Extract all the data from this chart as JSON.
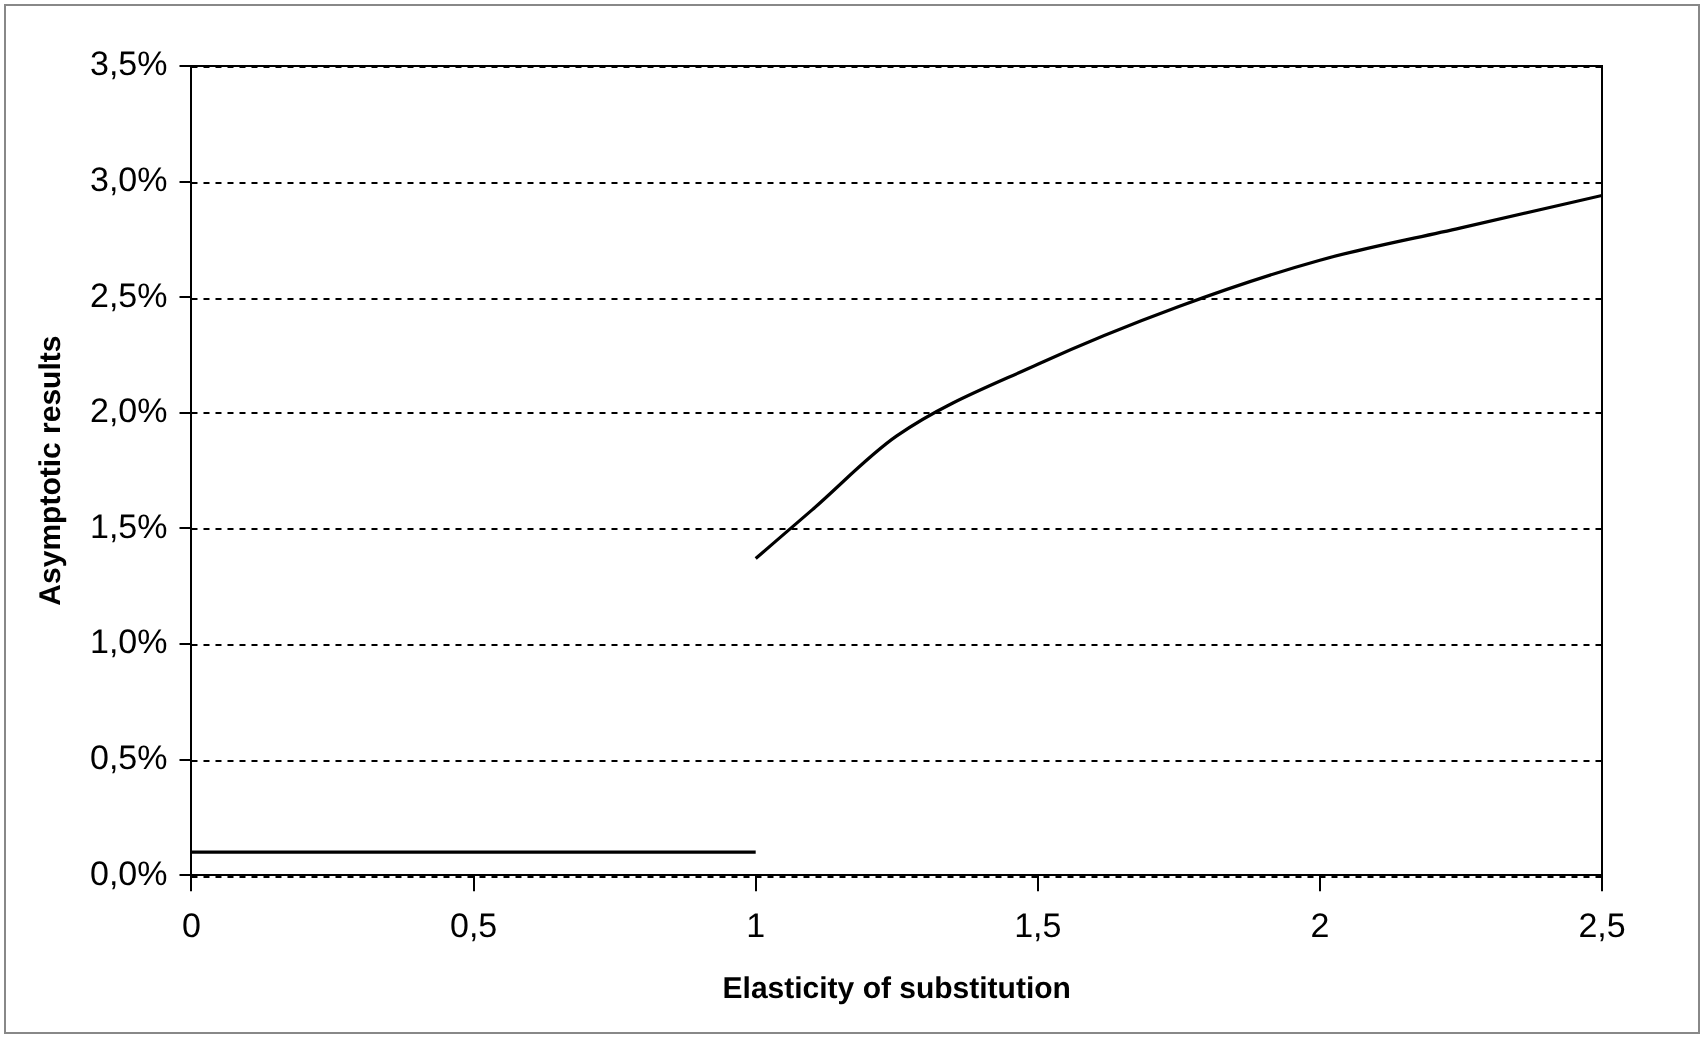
{
  "chart_data": {
    "type": "line",
    "xlabel": "Elasticity of substitution",
    "ylabel": "Asymptotic results",
    "series": [
      {
        "color": "#000000",
        "x": [
          0,
          1
        ],
        "values": [
          0.1,
          0.1
        ]
      },
      {
        "color": "#000000",
        "x": [
          1,
          1.1,
          1.25,
          1.5,
          1.75,
          2,
          2.25,
          2.5
        ],
        "values": [
          1.37,
          1.58,
          1.9,
          2.21,
          2.46,
          2.66,
          2.8,
          2.94
        ]
      }
    ],
    "xlim": [
      0,
      2.5
    ],
    "xticks": [
      0,
      {
        "value": 0.5,
        "label": "0,5"
      },
      1,
      {
        "value": 1.5,
        "label": "1,5"
      },
      2,
      {
        "value": 2.5,
        "label": "2,5"
      }
    ],
    "ylim": [
      0,
      3.5
    ],
    "yticks": [
      {
        "value": 0,
        "label": "0,0%"
      },
      {
        "value": 0.5,
        "label": "0,5%"
      },
      {
        "value": 1,
        "label": "1,0%"
      },
      {
        "value": 1.5,
        "label": "1,5%"
      },
      {
        "value": 2,
        "label": "2,0%"
      },
      {
        "value": 2.5,
        "label": "2,5%"
      },
      {
        "value": 3,
        "label": "3,0%"
      },
      {
        "value": 3.5,
        "label": "3,5%"
      }
    ],
    "grid": "y",
    "line_style": "solid",
    "marker": "none",
    "legend": false
  }
}
